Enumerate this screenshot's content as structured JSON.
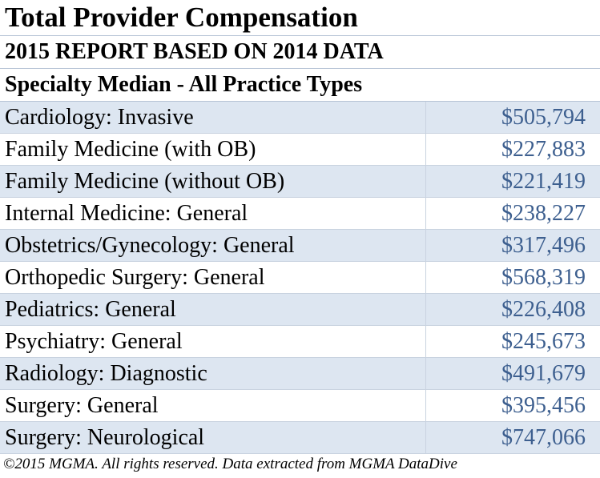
{
  "chart_data": {
    "type": "table",
    "title": "Total Provider Compensation",
    "subtitle": "2015 REPORT BASED ON 2014 DATA",
    "column_header": "Specialty Median - All Practice Types",
    "categories": [
      "Cardiology: Invasive",
      "Family Medicine (with OB)",
      "Family Medicine (without OB)",
      "Internal Medicine: General",
      "Obstetrics/Gynecology: General",
      "Orthopedic Surgery: General",
      "Pediatrics: General",
      "Psychiatry: General",
      "Radiology: Diagnostic",
      "Surgery: General",
      "Surgery: Neurological"
    ],
    "values": [
      505794,
      227883,
      221419,
      238227,
      317496,
      568319,
      226408,
      245673,
      491679,
      395456,
      747066
    ],
    "value_labels": [
      "$505,794",
      "$227,883",
      "$221,419",
      "$238,227",
      "$317,496",
      "$568,319",
      "$226,408",
      "$245,673",
      "$491,679",
      "$395,456",
      "$747,066"
    ],
    "footnote": "©2015 MGMA. All rights reserved. Data extracted from MGMA DataDive"
  },
  "colors": {
    "value_text": "#3d5f8f",
    "row_shade": "#dde6f1",
    "label_text": "#000000"
  }
}
